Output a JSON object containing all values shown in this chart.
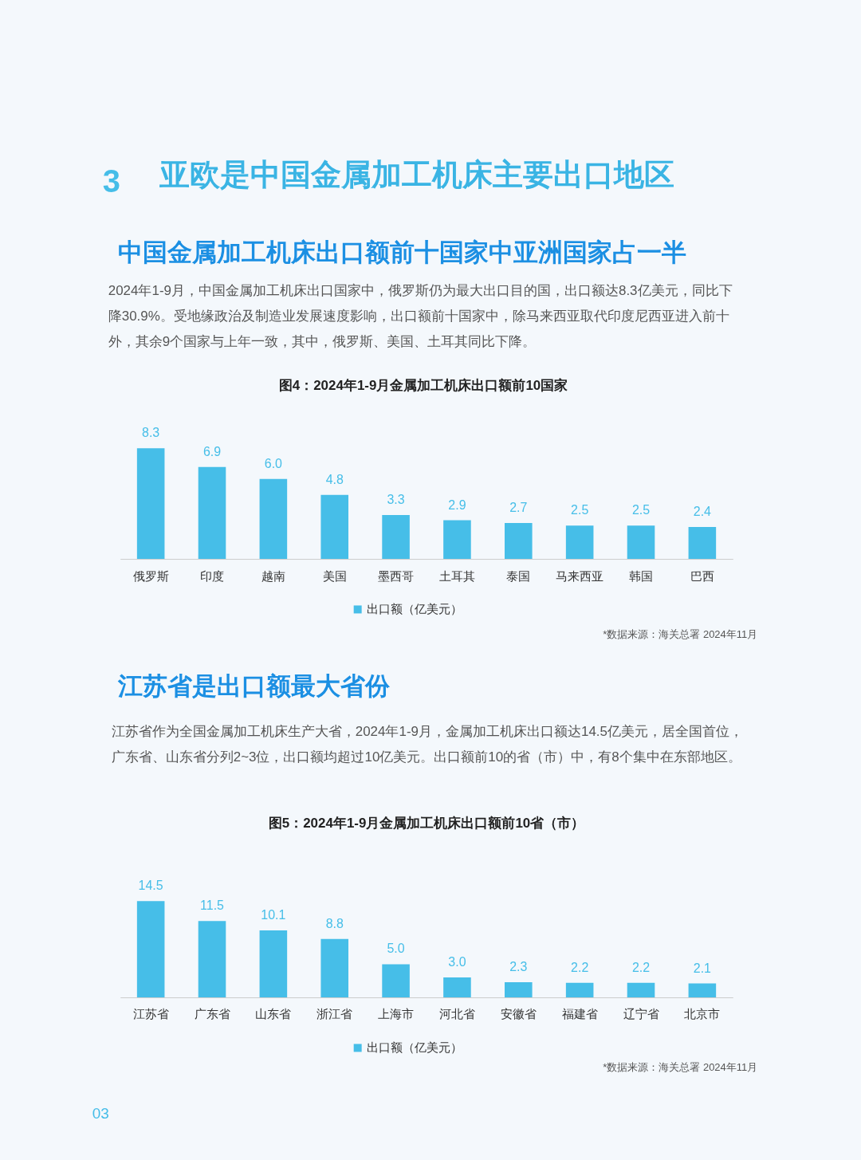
{
  "chart_data": [
    {
      "type": "bar",
      "title": "图4：2024年1-9月金属加工机床出口额前10国家",
      "categories": [
        "俄罗斯",
        "印度",
        "越南",
        "美国",
        "墨西哥",
        "土耳其",
        "泰国",
        "马来西亚",
        "韩国",
        "巴西"
      ],
      "series": [
        {
          "name": "出口额（亿美元）",
          "color": "#46bee8",
          "values": [
            8.3,
            6.9,
            6.0,
            4.8,
            3.3,
            2.9,
            2.7,
            2.5,
            2.5,
            2.4
          ],
          "value_labels": [
            "8.3",
            "6.9",
            "6.0",
            "4.8",
            "3.3",
            "2.9",
            "2.7",
            "2.5",
            "2.5",
            "2.4"
          ]
        }
      ],
      "legend": "bottom",
      "tick_labels": "x",
      "annotations": [
        "3",
        "亚欧是中国金属加工机床主要出口地区",
        "中国金属加工机床出口额前十国家中亚洲国家占一半",
        "2024年1-9月，中国金属加工机床出口国家中，俄罗斯仍为最大出口目的国，出口额达8.3亿美元，同比下",
        "降30.9%。受地缘政治及制造业发展速度影响，出口额前十国家中，除马来西亚取代印度尼西亚进入前十",
        "外，其余9个国家与上年一致，其中，俄罗斯、美国、土耳其同比下降。",
        "*数据来源：海关总署 2024年11月"
      ]
    },
    {
      "type": "bar",
      "title": "图5：2024年1-9月金属加工机床出口额前10省（市）",
      "categories": [
        "江苏省",
        "广东省",
        "山东省",
        "浙江省",
        "上海市",
        "河北省",
        "安徽省",
        "福建省",
        "辽宁省",
        "北京市"
      ],
      "series": [
        {
          "name": "出口额（亿美元）",
          "color": "#46bee8",
          "values": [
            14.5,
            11.5,
            10.1,
            8.8,
            5.0,
            3.0,
            2.3,
            2.2,
            2.2,
            2.1
          ],
          "value_labels": [
            "14.5",
            "11.5",
            "10.1",
            "8.8",
            "5.0",
            "3.0",
            "2.3",
            "2.2",
            "2.2",
            "2.1"
          ]
        }
      ],
      "legend": "bottom",
      "tick_labels": "x",
      "annotations": [
        "江苏省是出口额最大省份",
        "江苏省作为全国金属加工机床生产大省，2024年1-9月，金属加工机床出口额达14.5亿美元，居全国首位，",
        "广东省、山东省分列2~3位，出口额均超过10亿美元。出口额前10的省（市）中，有8个集中在东部地区。",
        "*数据来源：海关总署 2024年11月",
        "03"
      ]
    }
  ]
}
